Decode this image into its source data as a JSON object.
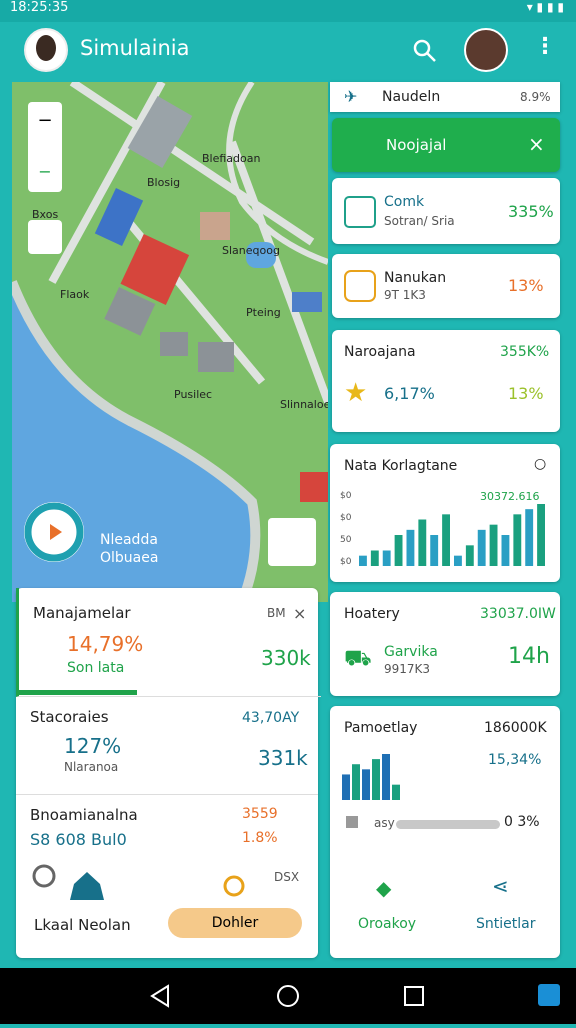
{
  "status_bar": {
    "time": "18:25:35"
  },
  "app_bar": {
    "title": "Simulainia"
  },
  "map": {
    "labels": [
      "Blefiadoan",
      "Blosig",
      "Bxos",
      "Slaneqoog",
      "Flaok",
      "Pusilec",
      "Pteing",
      "Slinnaloe"
    ],
    "widget": {
      "line1": "Nleadda",
      "line2": "Olbuaea"
    }
  },
  "left_cards": [
    {
      "title": "Manajamelar",
      "badge": "BM",
      "value": "14,79%",
      "sub": "Son lata",
      "right": "330k"
    },
    {
      "title": "Stacoraies",
      "badge": "43,70AY",
      "value": "127%",
      "sub": "Nlaranoa",
      "right": "331k"
    },
    {
      "title": "Bnoamianalna",
      "badge": "3559",
      "value": "S8 608 Bul0",
      "right": "1.8%",
      "extra": "DSX"
    }
  ],
  "footer": {
    "label": "Lkaal Neolan",
    "button": "Dohler"
  },
  "right": {
    "header": {
      "title": "Naudeln",
      "value": "8.9%"
    },
    "banner": "Noojajal",
    "cards": [
      {
        "title": "Comk",
        "sub": "Sotran/ Sria",
        "value": "335%"
      },
      {
        "title": "Nanukan",
        "sub": "9T 1K3",
        "value": "13%"
      }
    ],
    "stats": {
      "title": "Naroajana",
      "top": "355K%",
      "value": "6,17%",
      "right": "13%"
    },
    "activity_chart": {
      "title": "Nata Korlagtane",
      "value_label": "30372.616",
      "y_labels": [
        "$0",
        "$0",
        "50",
        "$0"
      ],
      "bars": [
        2,
        3,
        3,
        6,
        7,
        9,
        6,
        10,
        2,
        4,
        7,
        8,
        6,
        10,
        11,
        12
      ]
    },
    "hours": {
      "title": "Hoatery",
      "top": "33037.0IW",
      "name": "Garvika",
      "sub": "9917K3",
      "value": "14h"
    },
    "payments": {
      "title": "Pamoetlay",
      "top": "186000K",
      "value": "15,34%",
      "bars": [
        5,
        7,
        6,
        8,
        9,
        3
      ],
      "progress_label": "asy",
      "progress_value": "0 3%",
      "action1": "Oroakoy",
      "action2": "Sntietlar"
    }
  }
}
